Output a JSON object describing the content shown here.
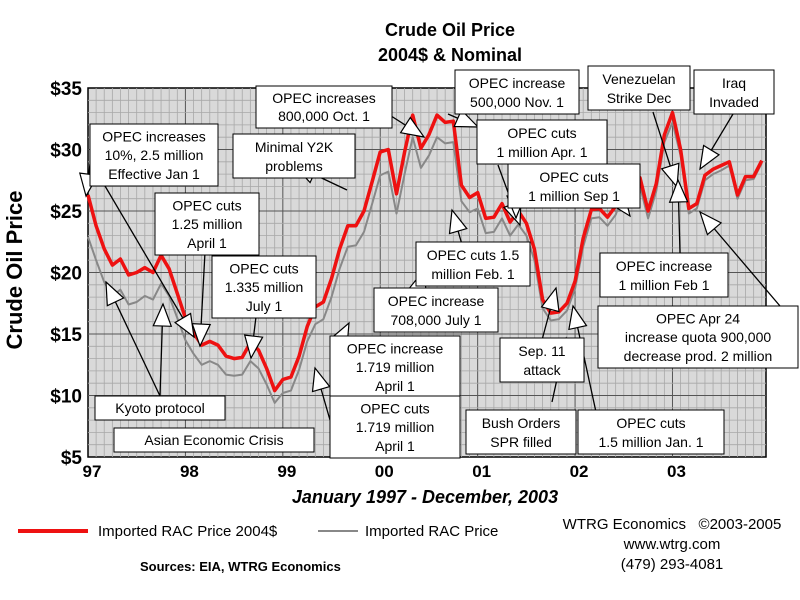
{
  "chart_data": {
    "type": "line",
    "title": "Crude Oil Price",
    "subtitle": "2004$ & Nominal",
    "xlabel": "January 1997 - December, 2003",
    "ylabel": "Crude Oil Price",
    "ylim": [
      5,
      35
    ],
    "y_ticks": [
      "$5",
      "$10",
      "$15",
      "$20",
      "$25",
      "$30",
      "$35"
    ],
    "x_ticks": [
      "97",
      "98",
      "99",
      "00",
      "01",
      "02",
      "03"
    ],
    "x_tick_years": [
      1997,
      1998,
      1999,
      2000,
      2001,
      2002,
      2003
    ],
    "xlim": [
      1997.0,
      2003.96
    ],
    "grid": true,
    "colors": {
      "series_real": "#ee1111",
      "series_nominal": "#888888"
    },
    "series": [
      {
        "name": "Imported RAC Price 2004$",
        "x": [
          1997.0,
          1997.083,
          1997.167,
          1997.25,
          1997.333,
          1997.417,
          1997.5,
          1997.583,
          1997.667,
          1997.75,
          1997.833,
          1997.917,
          1998.0,
          1998.083,
          1998.167,
          1998.25,
          1998.333,
          1998.417,
          1998.5,
          1998.583,
          1998.667,
          1998.75,
          1998.833,
          1998.917,
          1999.0,
          1999.083,
          1999.167,
          1999.25,
          1999.333,
          1999.417,
          1999.5,
          1999.583,
          1999.667,
          1999.75,
          1999.833,
          1999.917,
          2000.0,
          2000.083,
          2000.167,
          2000.25,
          2000.333,
          2000.417,
          2000.5,
          2000.583,
          2000.667,
          2000.75,
          2000.833,
          2000.917,
          2001.0,
          2001.083,
          2001.167,
          2001.25,
          2001.333,
          2001.417,
          2001.5,
          2001.583,
          2001.667,
          2001.75,
          2001.833,
          2001.917,
          2002.0,
          2002.083,
          2002.167,
          2002.25,
          2002.333,
          2002.417,
          2002.5,
          2002.583,
          2002.667,
          2002.75,
          2002.833,
          2002.917,
          2003.0,
          2003.083,
          2003.167,
          2003.25,
          2003.333,
          2003.417,
          2003.5,
          2003.583,
          2003.667,
          2003.75,
          2003.833,
          2003.917
        ],
        "values": [
          26.3,
          23.8,
          21.9,
          20.6,
          21.1,
          19.8,
          20.0,
          20.4,
          20.0,
          21.4,
          20.3,
          18.3,
          16.3,
          15.1,
          14.1,
          14.4,
          14.1,
          13.2,
          13.0,
          13.1,
          14.3,
          13.7,
          12.2,
          10.4,
          11.3,
          11.5,
          13.2,
          15.6,
          17.2,
          17.6,
          19.5,
          21.9,
          23.8,
          23.8,
          25.0,
          27.4,
          29.8,
          30.0,
          26.4,
          29.8,
          32.8,
          30.1,
          31.2,
          32.8,
          32.2,
          32.3,
          27.1,
          26.1,
          26.5,
          24.4,
          24.5,
          25.6,
          24.1,
          25.0,
          24.0,
          21.9,
          17.8,
          16.7,
          16.8,
          17.5,
          19.3,
          22.8,
          25.1,
          25.2,
          24.5,
          25.4,
          27.2,
          28.2,
          27.7,
          25.0,
          27.2,
          31.2,
          33.0,
          30.0,
          25.2,
          25.6,
          27.9,
          28.4,
          28.7,
          29.0,
          26.3,
          27.8,
          27.8,
          29.1
        ]
      },
      {
        "name": "Imported RAC Price",
        "x": [
          1997.0,
          1997.083,
          1997.167,
          1997.25,
          1997.333,
          1997.417,
          1997.5,
          1997.583,
          1997.667,
          1997.75,
          1997.833,
          1997.917,
          1998.0,
          1998.083,
          1998.167,
          1998.25,
          1998.333,
          1998.417,
          1998.5,
          1998.583,
          1998.667,
          1998.75,
          1998.833,
          1998.917,
          1999.0,
          1999.083,
          1999.167,
          1999.25,
          1999.333,
          1999.417,
          1999.5,
          1999.583,
          1999.667,
          1999.75,
          1999.833,
          1999.917,
          2000.0,
          2000.083,
          2000.167,
          2000.25,
          2000.333,
          2000.417,
          2000.5,
          2000.583,
          2000.667,
          2000.75,
          2000.833,
          2000.917,
          2001.0,
          2001.083,
          2001.167,
          2001.25,
          2001.333,
          2001.417,
          2001.5,
          2001.583,
          2001.667,
          2001.75,
          2001.833,
          2001.917,
          2002.0,
          2002.083,
          2002.167,
          2002.25,
          2002.333,
          2002.417,
          2002.5,
          2002.583,
          2002.667,
          2002.75,
          2002.833,
          2002.917,
          2003.0,
          2003.083,
          2003.167,
          2003.25,
          2003.333,
          2003.417,
          2003.5,
          2003.583,
          2003.667,
          2003.75,
          2003.833,
          2003.917
        ],
        "values": [
          22.9,
          21.0,
          19.2,
          18.1,
          18.6,
          17.4,
          17.6,
          18.1,
          17.8,
          19.1,
          18.1,
          16.3,
          14.5,
          13.4,
          12.5,
          12.8,
          12.5,
          11.7,
          11.6,
          11.7,
          12.8,
          12.2,
          10.9,
          9.4,
          10.2,
          10.4,
          12.1,
          14.4,
          15.8,
          16.2,
          18.0,
          20.3,
          22.1,
          22.2,
          23.3,
          25.6,
          27.9,
          28.2,
          24.8,
          28.0,
          31.0,
          28.5,
          29.5,
          31.0,
          30.5,
          30.6,
          25.8,
          24.9,
          25.2,
          23.2,
          23.3,
          24.4,
          23.0,
          23.9,
          23.0,
          21.0,
          17.1,
          16.1,
          16.2,
          16.9,
          18.7,
          22.1,
          24.4,
          24.5,
          23.8,
          24.7,
          26.5,
          27.5,
          27.0,
          24.4,
          26.6,
          30.6,
          32.2,
          29.5,
          24.8,
          25.2,
          27.5,
          28.0,
          28.3,
          28.7,
          26.0,
          27.5,
          27.6,
          28.9
        ]
      }
    ],
    "annotations": [
      {
        "lines": [
          "OPEC increases",
          "10%, 2.5 million",
          "Effective Jan 1"
        ]
      },
      {
        "lines": [
          "OPEC cuts",
          "1.25 million",
          "April 1"
        ]
      },
      {
        "lines": [
          "OPEC cuts",
          "1.335 million",
          "July 1"
        ]
      },
      {
        "lines": [
          "Kyoto protocol"
        ]
      },
      {
        "lines": [
          "Asian Economic Crisis"
        ]
      },
      {
        "lines": [
          "Minimal Y2K",
          "problems"
        ]
      },
      {
        "lines": [
          "OPEC increases",
          "800,000 Oct. 1"
        ]
      },
      {
        "lines": [
          "OPEC increase",
          "1.719 million",
          "April 1"
        ]
      },
      {
        "lines": [
          "OPEC cuts",
          "1.719 million",
          "April 1"
        ]
      },
      {
        "lines": [
          "OPEC increase",
          "708,000 July 1"
        ]
      },
      {
        "lines": [
          "OPEC increase",
          "500,000 Nov. 1"
        ]
      },
      {
        "lines": [
          "OPEC cuts",
          "1 million Apr. 1"
        ]
      },
      {
        "lines": [
          "OPEC cuts",
          "1 million Sep 1"
        ]
      },
      {
        "lines": [
          "OPEC cuts 1.5",
          "million Feb. 1"
        ]
      },
      {
        "lines": [
          "Sep. 11",
          "attack"
        ]
      },
      {
        "lines": [
          "Bush Orders",
          "SPR filled"
        ]
      },
      {
        "lines": [
          "OPEC cuts",
          "1.5 million Jan. 1"
        ]
      },
      {
        "lines": [
          "Venezuelan",
          "Strike Dec"
        ]
      },
      {
        "lines": [
          "Iraq",
          "Invaded"
        ]
      },
      {
        "lines": [
          "OPEC increase",
          "1 million Feb 1"
        ]
      },
      {
        "lines": [
          "OPEC Apr 24",
          "increase quota 900,000",
          "decrease prod. 2 million"
        ]
      }
    ]
  },
  "legend": {
    "real_label": "Imported RAC Price 2004$",
    "nominal_label": "Imported RAC Price"
  },
  "footer": {
    "sources": "Sources: EIA, WTRG Economics",
    "copyright": "WTRG Economics   ©2003-2005",
    "website": "www.wtrg.com",
    "phone": "(479) 293-4081"
  }
}
